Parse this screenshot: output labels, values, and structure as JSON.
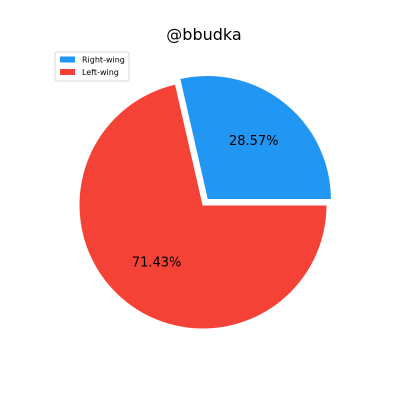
{
  "chart_data": {
    "type": "pie",
    "title": "@bbudka",
    "slices": [
      {
        "name": "Right-wing",
        "value": 28.57,
        "label": "28.57%",
        "color": "#2196F3",
        "exploded": true
      },
      {
        "name": "Left-wing",
        "value": 71.43,
        "label": "71.43%",
        "color": "#F44336",
        "exploded": false
      }
    ],
    "legend": {
      "placement": "upper-left",
      "entries": [
        "Right-wing",
        "Left-wing"
      ]
    }
  }
}
